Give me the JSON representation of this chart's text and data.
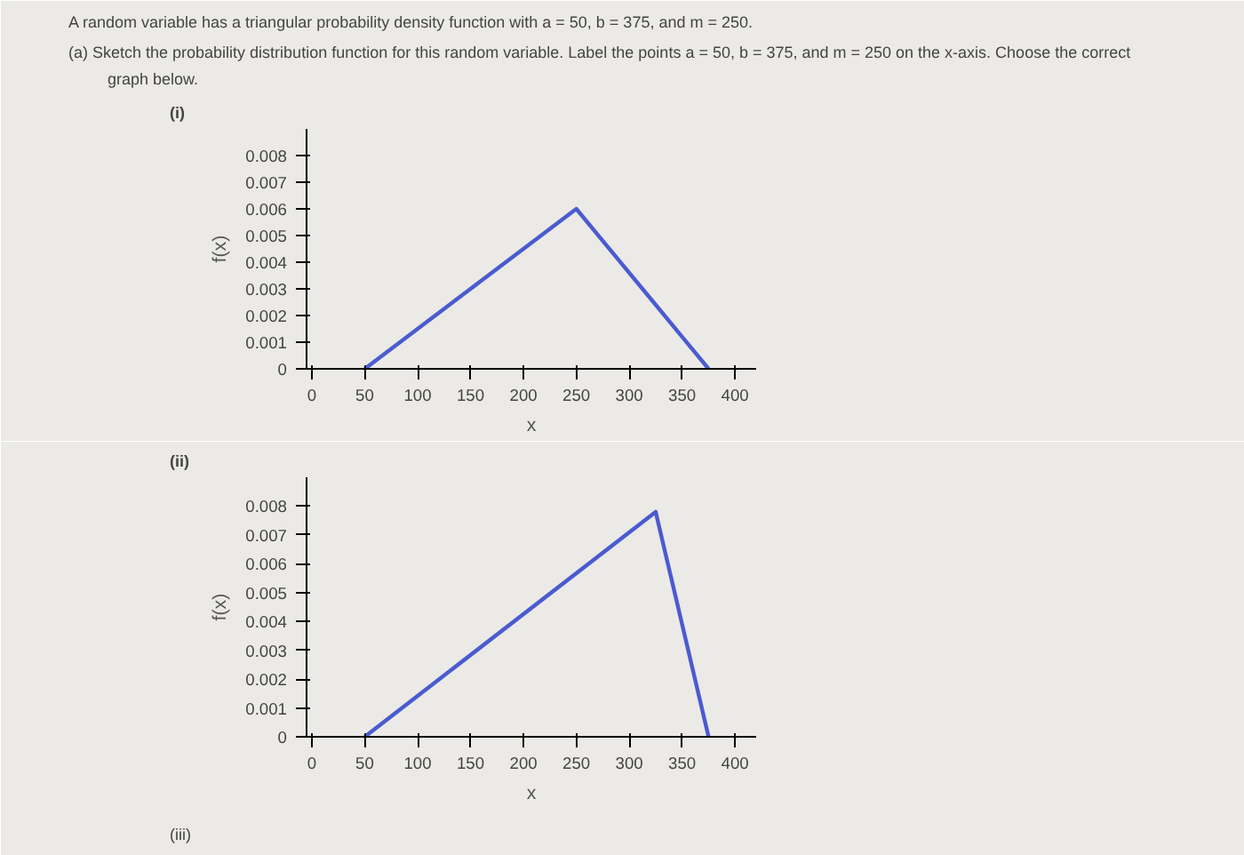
{
  "chart_data": [
    {
      "type": "line",
      "title": "(i)",
      "xlabel": "x",
      "ylabel": "f(x)",
      "x": [
        50,
        250,
        375
      ],
      "color": "#4a5bd0",
      "values": [
        0,
        0.006,
        0
      ],
      "xlim": [
        -5,
        420
      ],
      "ylim": [
        0,
        0.009
      ],
      "xticks": [
        0,
        50,
        100,
        150,
        200,
        250,
        300,
        350,
        400
      ],
      "yticks": [
        0,
        0.001,
        0.002,
        0.003,
        0.004,
        0.005,
        0.006,
        0.007,
        0.008
      ],
      "grid": false,
      "marker": "none",
      "line_style": "solid",
      "annotations": [
        "A random variable has a triangular probability density function with a = 50, b = 375, and m = 250.",
        "(a) Sketch the probability distribution function for this random variable. Label the points a = 50, b = 375, and m = 250 on the x-axis. Choose the correct",
        "graph below."
      ]
    },
    {
      "type": "line",
      "title": "(ii)",
      "xlabel": "x",
      "ylabel": "f(x)",
      "x": [
        50,
        325,
        375
      ],
      "color": "#4a5bd0",
      "values": [
        0,
        0.0078,
        0
      ],
      "xlim": [
        -5,
        420
      ],
      "ylim": [
        0,
        0.009
      ],
      "xticks": [
        0,
        50,
        100,
        150,
        200,
        250,
        300,
        350,
        400
      ],
      "yticks": [
        0,
        0.001,
        0.002,
        0.003,
        0.004,
        0.005,
        0.006,
        0.007,
        0.008
      ],
      "grid": false,
      "marker": "none",
      "line_style": "solid",
      "annotations": [
        "(iii)"
      ]
    }
  ]
}
